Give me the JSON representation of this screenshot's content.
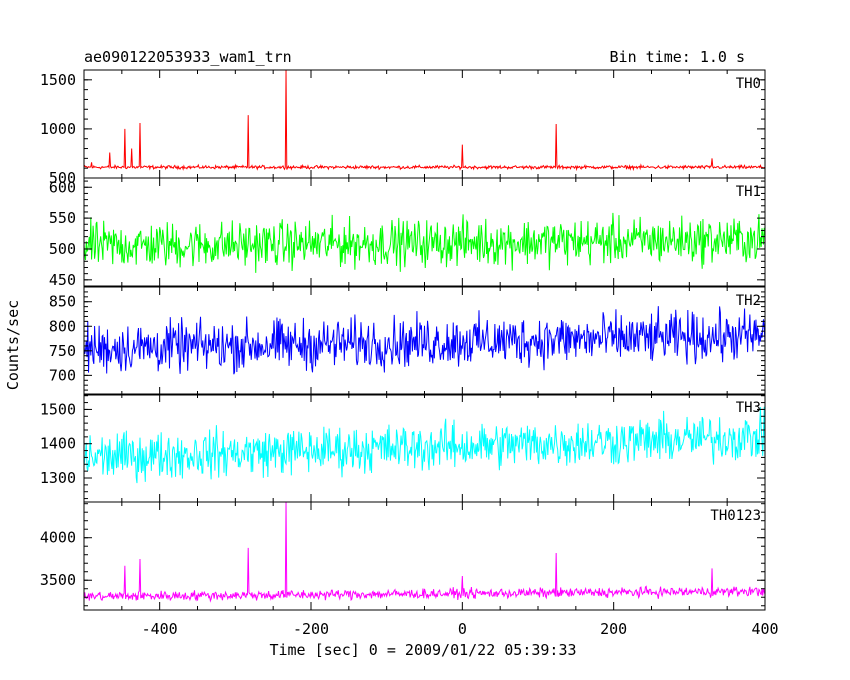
{
  "header": {
    "left": "ae090122053933_wam1_trn",
    "right": "Bin time: 1.0 s"
  },
  "axes": {
    "xlabel": "Time [sec] 0 = 2009/01/22 05:39:33",
    "ylabel": "Counts/sec"
  },
  "chart_data": {
    "type": "line",
    "title": "ae090122053933_wam1_trn",
    "subtitle": "Bin time: 1.0 s",
    "xlabel": "Time [sec] 0 = 2009/01/22 05:39:33",
    "ylabel": "Counts/sec",
    "xlim": [
      -500,
      400
    ],
    "x_ticks": [
      -400,
      -200,
      0,
      200,
      400
    ],
    "x_range_data": [
      -500,
      400
    ],
    "grid": false,
    "legend": "none",
    "panels": [
      {
        "name": "TH0",
        "color": "#ff0000",
        "ylim": [
          500,
          1600
        ],
        "y_ticks": [
          500,
          1000,
          1500
        ],
        "baseline": 610,
        "noise": 25,
        "trend": 0,
        "spikes": [
          {
            "x": -490,
            "y": 660
          },
          {
            "x": -466,
            "y": 760
          },
          {
            "x": -446,
            "y": 1000
          },
          {
            "x": -437,
            "y": 800
          },
          {
            "x": -426,
            "y": 1060
          },
          {
            "x": -283,
            "y": 1140
          },
          {
            "x": -233,
            "y": 1600
          },
          {
            "x": 0,
            "y": 840
          },
          {
            "x": 124,
            "y": 1050
          },
          {
            "x": 330,
            "y": 700
          }
        ]
      },
      {
        "name": "TH1",
        "color": "#00ff00",
        "ylim": [
          440,
          615
        ],
        "y_ticks": [
          450,
          500,
          550,
          600
        ],
        "baseline": 505,
        "noise": 55,
        "trend": 10,
        "spikes": []
      },
      {
        "name": "TH2",
        "color": "#0000ff",
        "ylim": [
          660,
          880
        ],
        "y_ticks": [
          700,
          750,
          800,
          850
        ],
        "baseline": 755,
        "noise": 75,
        "trend": 25,
        "spikes": []
      },
      {
        "name": "TH3",
        "color": "#00ffff",
        "ylim": [
          1230,
          1545
        ],
        "y_ticks": [
          1300,
          1400,
          1500
        ],
        "baseline": 1360,
        "noise": 100,
        "trend": 60,
        "spikes": []
      },
      {
        "name": "TH0123",
        "color": "#ff00ff",
        "ylim": [
          3150,
          4420
        ],
        "y_ticks": [
          3500,
          4000
        ],
        "baseline": 3310,
        "noise": 85,
        "trend": 60,
        "spikes": [
          {
            "x": -446,
            "y": 3670
          },
          {
            "x": -426,
            "y": 3750
          },
          {
            "x": -283,
            "y": 3880
          },
          {
            "x": -233,
            "y": 4420
          },
          {
            "x": 0,
            "y": 3550
          },
          {
            "x": 124,
            "y": 3820
          },
          {
            "x": 330,
            "y": 3640
          }
        ]
      }
    ]
  }
}
